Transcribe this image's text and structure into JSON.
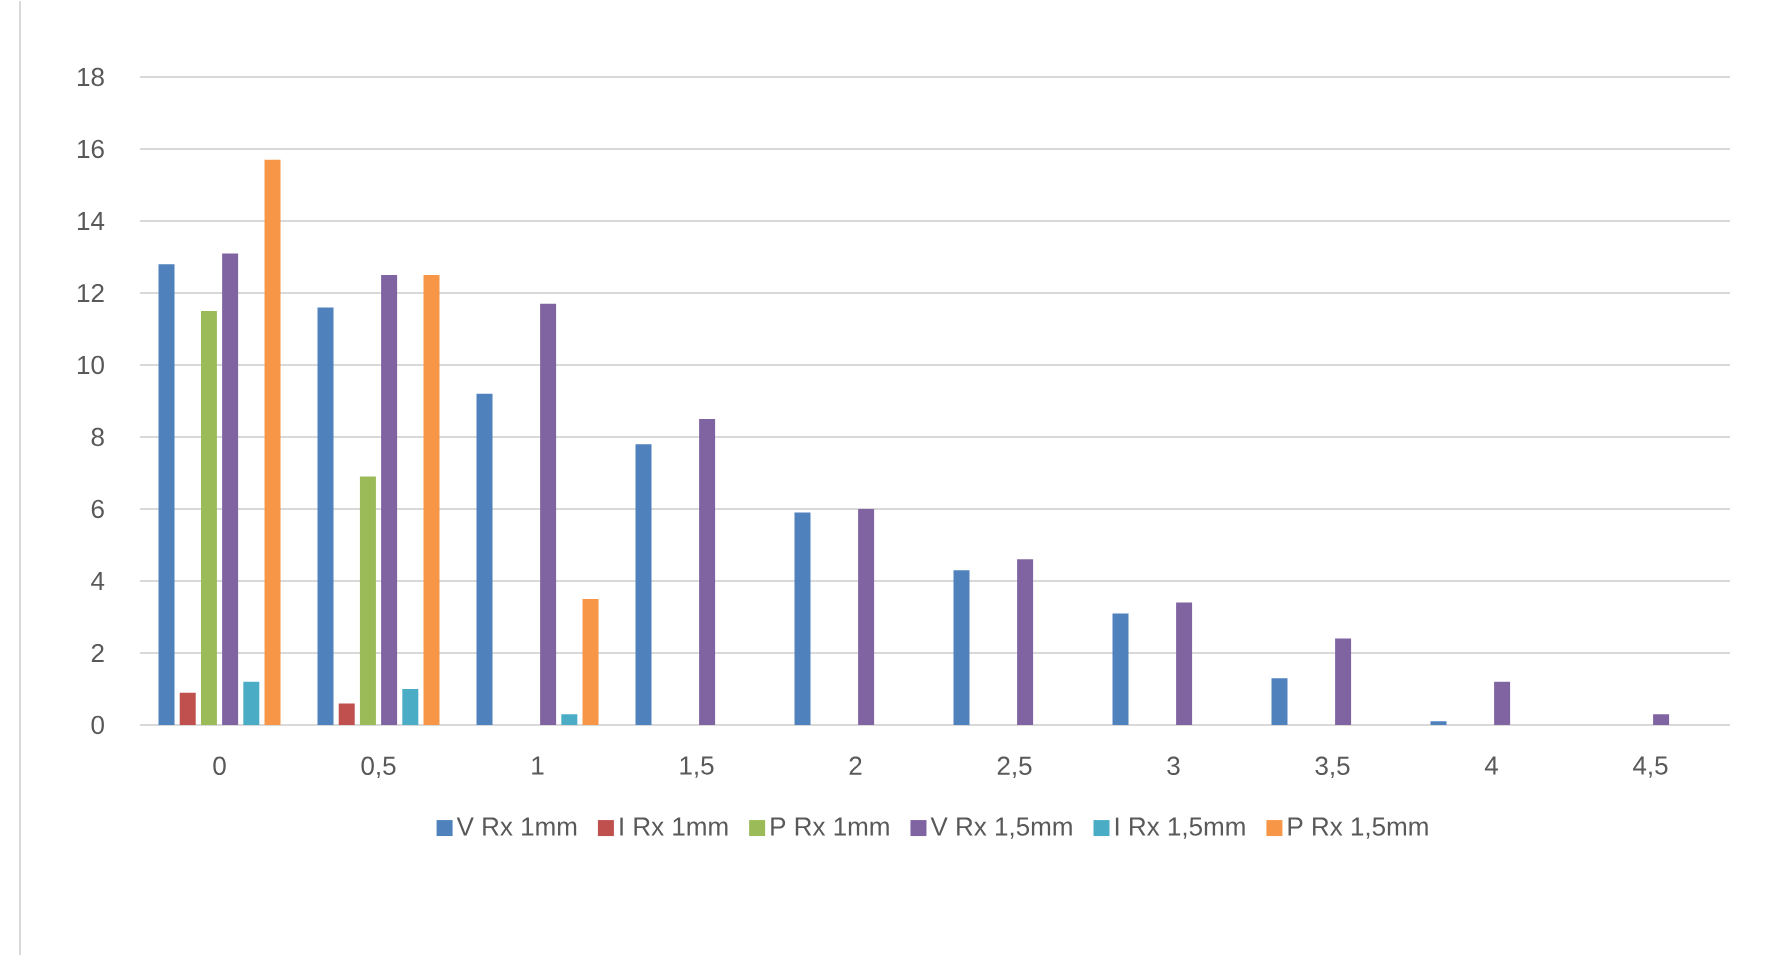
{
  "chart_data": {
    "type": "bar",
    "categories": [
      "0",
      "0,5",
      "1",
      "1,5",
      "2",
      "2,5",
      "3",
      "3,5",
      "4",
      "4,5"
    ],
    "series": [
      {
        "name": "V Rx 1mm",
        "color": "#4f81bd",
        "values": [
          12.8,
          11.6,
          9.2,
          7.8,
          5.9,
          4.3,
          3.1,
          1.3,
          0.1,
          null
        ]
      },
      {
        "name": "I Rx 1mm",
        "color": "#c0504d",
        "values": [
          0.9,
          0.6,
          null,
          null,
          null,
          null,
          null,
          null,
          null,
          null
        ]
      },
      {
        "name": "P Rx 1mm",
        "color": "#9bbb59",
        "values": [
          11.5,
          6.9,
          null,
          null,
          null,
          null,
          null,
          null,
          null,
          null
        ]
      },
      {
        "name": "V Rx 1,5mm",
        "color": "#8064a2",
        "values": [
          13.1,
          12.5,
          11.7,
          8.5,
          6.0,
          4.6,
          3.4,
          2.4,
          1.2,
          0.3
        ]
      },
      {
        "name": "I Rx 1,5mm",
        "color": "#4bacc6",
        "values": [
          1.2,
          1.0,
          0.3,
          null,
          null,
          null,
          null,
          null,
          null,
          null
        ]
      },
      {
        "name": "P Rx 1,5mm",
        "color": "#f79646",
        "values": [
          15.7,
          12.5,
          3.5,
          null,
          null,
          null,
          null,
          null,
          null,
          null
        ]
      }
    ],
    "ylim": [
      0,
      18
    ],
    "yticks": [
      0,
      2,
      4,
      6,
      8,
      10,
      12,
      14,
      16,
      18
    ],
    "grid": "y",
    "legend": "bottom"
  }
}
